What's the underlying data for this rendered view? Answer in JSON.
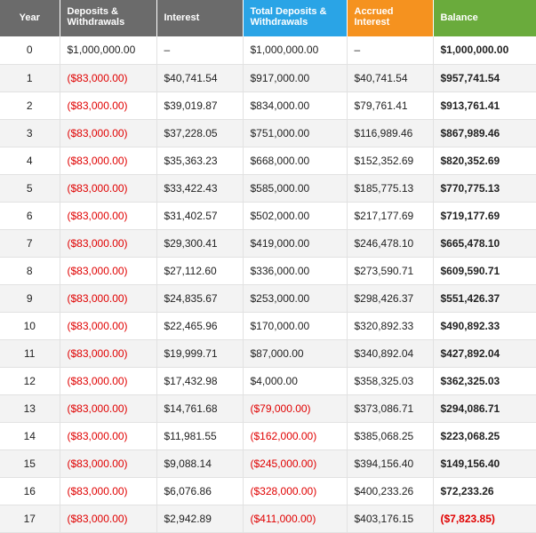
{
  "table": {
    "headers": [
      "Year",
      "Deposits & Withdrawals",
      "Interest",
      "Total Deposits & Withdrawals",
      "Accrued Interest",
      "Balance"
    ],
    "rows": [
      [
        "0",
        "$1,000,000.00",
        "–",
        "$1,000,000.00",
        "–",
        "$1,000,000.00"
      ],
      [
        "1",
        "($83,000.00)",
        "$40,741.54",
        "$917,000.00",
        "$40,741.54",
        "$957,741.54"
      ],
      [
        "2",
        "($83,000.00)",
        "$39,019.87",
        "$834,000.00",
        "$79,761.41",
        "$913,761.41"
      ],
      [
        "3",
        "($83,000.00)",
        "$37,228.05",
        "$751,000.00",
        "$116,989.46",
        "$867,989.46"
      ],
      [
        "4",
        "($83,000.00)",
        "$35,363.23",
        "$668,000.00",
        "$152,352.69",
        "$820,352.69"
      ],
      [
        "5",
        "($83,000.00)",
        "$33,422.43",
        "$585,000.00",
        "$185,775.13",
        "$770,775.13"
      ],
      [
        "6",
        "($83,000.00)",
        "$31,402.57",
        "$502,000.00",
        "$217,177.69",
        "$719,177.69"
      ],
      [
        "7",
        "($83,000.00)",
        "$29,300.41",
        "$419,000.00",
        "$246,478.10",
        "$665,478.10"
      ],
      [
        "8",
        "($83,000.00)",
        "$27,112.60",
        "$336,000.00",
        "$273,590.71",
        "$609,590.71"
      ],
      [
        "9",
        "($83,000.00)",
        "$24,835.67",
        "$253,000.00",
        "$298,426.37",
        "$551,426.37"
      ],
      [
        "10",
        "($83,000.00)",
        "$22,465.96",
        "$170,000.00",
        "$320,892.33",
        "$490,892.33"
      ],
      [
        "11",
        "($83,000.00)",
        "$19,999.71",
        "$87,000.00",
        "$340,892.04",
        "$427,892.04"
      ],
      [
        "12",
        "($83,000.00)",
        "$17,432.98",
        "$4,000.00",
        "$358,325.03",
        "$362,325.03"
      ],
      [
        "13",
        "($83,000.00)",
        "$14,761.68",
        "($79,000.00)",
        "$373,086.71",
        "$294,086.71"
      ],
      [
        "14",
        "($83,000.00)",
        "$11,981.55",
        "($162,000.00)",
        "$385,068.25",
        "$223,068.25"
      ],
      [
        "15",
        "($83,000.00)",
        "$9,088.14",
        "($245,000.00)",
        "$394,156.40",
        "$149,156.40"
      ],
      [
        "16",
        "($83,000.00)",
        "$6,076.86",
        "($328,000.00)",
        "$400,233.26",
        "$72,233.26"
      ],
      [
        "17",
        "($83,000.00)",
        "$2,942.89",
        "($411,000.00)",
        "$403,176.15",
        "($7,823.85)"
      ]
    ]
  }
}
